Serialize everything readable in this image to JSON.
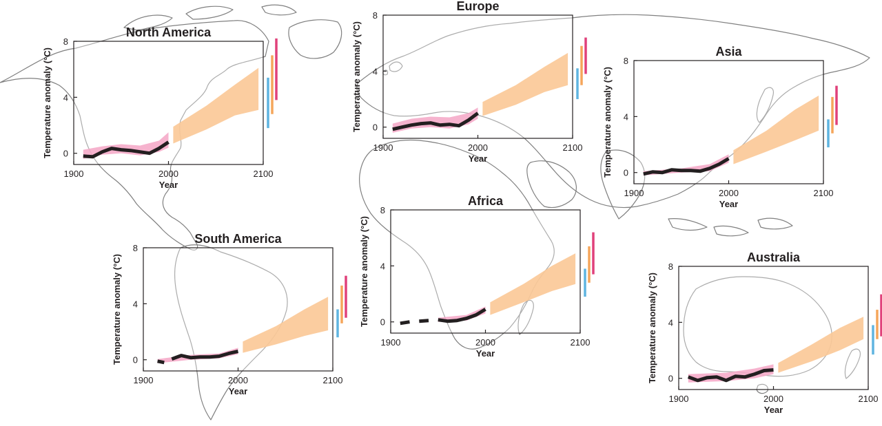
{
  "colors": {
    "observed_line": "#231f20",
    "observed_band": "#f4a6c6",
    "projection_band": "#fbc896",
    "bar_blue": "#5fb4e0",
    "bar_orange": "#f5a65b",
    "bar_pink": "#e0417a",
    "map_line": "#7f7f7f"
  },
  "chart_data": [
    {
      "type": "line",
      "title": "North America",
      "xlabel": "Year",
      "ylabel": "Temperature anomaly (°C)",
      "xlim": [
        1900,
        2100
      ],
      "ylim": [
        -0.8,
        8
      ],
      "xticks": [
        "1900",
        "2000",
        "2100"
      ],
      "yticks": [
        "0",
        "4",
        "8"
      ],
      "series": [
        {
          "values": [
            [
              1910,
              -0.2
            ],
            [
              1920,
              -0.25
            ],
            [
              1930,
              0.1
            ],
            [
              1940,
              0.35
            ],
            [
              1950,
              0.25
            ],
            [
              1960,
              0.2
            ],
            [
              1970,
              0.1
            ],
            [
              1980,
              0.0
            ],
            [
              1990,
              0.35
            ],
            [
              2000,
              0.8
            ]
          ]
        }
      ],
      "observed_band": {
        "x": [
          1910,
          1930,
          1950,
          1970,
          1990,
          2000
        ],
        "low": [
          -0.4,
          -0.1,
          0.0,
          -0.15,
          0.1,
          0.4
        ],
        "high": [
          0.25,
          0.5,
          0.65,
          0.55,
          0.9,
          1.5
        ]
      },
      "projection_band": {
        "x": [
          2005,
          2040,
          2070,
          2095
        ],
        "low": [
          0.7,
          1.7,
          2.7,
          3.1
        ],
        "high": [
          1.9,
          3.4,
          4.9,
          6.1
        ]
      },
      "side_bars": [
        [
          1.8,
          5.4
        ],
        [
          2.8,
          7.0
        ],
        [
          3.8,
          8.2
        ]
      ]
    },
    {
      "type": "line",
      "title": "Europe",
      "xlabel": "Year",
      "ylabel": "Temperature anomaly (°C)",
      "xlim": [
        1900,
        2100
      ],
      "ylim": [
        -0.8,
        8
      ],
      "xticks": [
        "1900",
        "2000",
        "2100"
      ],
      "yticks": [
        "0",
        "4",
        "8"
      ],
      "series": [
        {
          "values": [
            [
              1910,
              -0.15
            ],
            [
              1920,
              0.0
            ],
            [
              1930,
              0.15
            ],
            [
              1940,
              0.25
            ],
            [
              1950,
              0.3
            ],
            [
              1960,
              0.15
            ],
            [
              1970,
              0.2
            ],
            [
              1980,
              0.1
            ],
            [
              1990,
              0.5
            ],
            [
              2000,
              1.0
            ]
          ]
        }
      ],
      "observed_band": {
        "x": [
          1910,
          1930,
          1950,
          1970,
          1990,
          2000
        ],
        "low": [
          -0.4,
          -0.1,
          0.0,
          -0.1,
          0.2,
          0.6
        ],
        "high": [
          0.25,
          0.6,
          0.75,
          0.7,
          1.0,
          1.4
        ]
      },
      "projection_band": {
        "x": [
          2005,
          2040,
          2070,
          2095
        ],
        "low": [
          0.8,
          1.6,
          2.5,
          3.0
        ],
        "high": [
          1.8,
          3.0,
          4.3,
          5.3
        ]
      },
      "side_bars": [
        [
          2.0,
          4.2
        ],
        [
          3.0,
          5.8
        ],
        [
          3.8,
          6.4
        ]
      ]
    },
    {
      "type": "line",
      "title": "Asia",
      "xlabel": "Year",
      "ylabel": "Temperature anomaly (°C)",
      "xlim": [
        1900,
        2100
      ],
      "ylim": [
        -0.8,
        8
      ],
      "xticks": [
        "1900",
        "2000",
        "2100"
      ],
      "yticks": [
        "0",
        "4",
        "8"
      ],
      "series": [
        {
          "values": [
            [
              1910,
              -0.1
            ],
            [
              1920,
              0.05
            ],
            [
              1930,
              0.0
            ],
            [
              1940,
              0.2
            ],
            [
              1950,
              0.15
            ],
            [
              1960,
              0.15
            ],
            [
              1970,
              0.1
            ],
            [
              1980,
              0.3
            ],
            [
              1990,
              0.6
            ],
            [
              2000,
              1.0
            ]
          ]
        }
      ],
      "observed_band": {
        "x": [
          1910,
          1950,
          1980,
          2000
        ],
        "low": [
          -0.2,
          0.0,
          0.1,
          0.7
        ],
        "high": [
          0.1,
          0.3,
          0.6,
          1.3
        ]
      },
      "projection_band": {
        "x": [
          2005,
          2040,
          2070,
          2095
        ],
        "low": [
          0.6,
          1.5,
          2.3,
          3.0
        ],
        "high": [
          1.6,
          3.0,
          4.5,
          5.5
        ]
      },
      "side_bars": [
        [
          1.8,
          3.8
        ],
        [
          2.8,
          5.4
        ],
        [
          3.4,
          6.2
        ]
      ]
    },
    {
      "type": "line",
      "title": "South America",
      "xlabel": "Year",
      "ylabel": "Temperature anomaly (°C)",
      "xlim": [
        1900,
        2100
      ],
      "ylim": [
        -0.8,
        8
      ],
      "xticks": [
        "1900",
        "2000",
        "2100"
      ],
      "yticks": [
        "0",
        "4",
        "8"
      ],
      "series": [
        {
          "values": [
            [
              1915,
              -0.1
            ],
            [
              1922,
              -0.2
            ]
          ]
        },
        {
          "values": [
            [
              1930,
              0.05
            ],
            [
              1940,
              0.3
            ],
            [
              1950,
              0.15
            ],
            [
              1960,
              0.2
            ],
            [
              1970,
              0.2
            ],
            [
              1980,
              0.25
            ],
            [
              1990,
              0.45
            ],
            [
              2000,
              0.6
            ]
          ]
        }
      ],
      "observed_band": {
        "x": [
          1915,
          1950,
          1980,
          2000
        ],
        "low": [
          -0.25,
          0.0,
          0.1,
          0.4
        ],
        "high": [
          0.05,
          0.35,
          0.45,
          0.85
        ]
      },
      "projection_band": {
        "x": [
          2005,
          2040,
          2070,
          2095
        ],
        "low": [
          0.5,
          1.1,
          1.7,
          2.1
        ],
        "high": [
          1.3,
          2.4,
          3.6,
          4.5
        ]
      },
      "side_bars": [
        [
          1.6,
          3.6
        ],
        [
          2.6,
          5.3
        ],
        [
          3.0,
          6.0
        ]
      ]
    },
    {
      "type": "line",
      "title": "Africa",
      "xlabel": "Year",
      "ylabel": "Temperature anomaly (°C)",
      "xlim": [
        1900,
        2100
      ],
      "ylim": [
        -0.8,
        8
      ],
      "xticks": [
        "1900",
        "2000",
        "2100"
      ],
      "yticks": [
        "0",
        "4",
        "8"
      ],
      "series": [
        {
          "values": [
            [
              1910,
              -0.1
            ],
            [
              1920,
              0.0
            ]
          ]
        },
        {
          "values": [
            [
              1930,
              0.05
            ],
            [
              1940,
              0.1
            ]
          ]
        },
        {
          "values": [
            [
              1950,
              0.15
            ],
            [
              1960,
              0.05
            ],
            [
              1970,
              0.1
            ],
            [
              1980,
              0.25
            ],
            [
              1990,
              0.5
            ],
            [
              2000,
              0.9
            ]
          ]
        }
      ],
      "observed_band": {
        "x": [
          1950,
          1980,
          2000
        ],
        "low": [
          0.0,
          0.1,
          0.6
        ],
        "high": [
          0.3,
          0.5,
          1.1
        ]
      },
      "projection_band": {
        "x": [
          2005,
          2040,
          2070,
          2095
        ],
        "low": [
          0.5,
          1.4,
          2.2,
          2.7
        ],
        "high": [
          1.4,
          2.7,
          4.0,
          4.9
        ]
      },
      "side_bars": [
        [
          1.8,
          3.8
        ],
        [
          2.8,
          5.4
        ],
        [
          3.4,
          6.4
        ]
      ]
    },
    {
      "type": "line",
      "title": "Australia",
      "xlabel": "Year",
      "ylabel": "Temperature anomaly (°C)",
      "xlim": [
        1900,
        2100
      ],
      "ylim": [
        -0.8,
        8
      ],
      "xticks": [
        "1900",
        "2000",
        "2100"
      ],
      "yticks": [
        "0",
        "4",
        "8"
      ],
      "series": [
        {
          "values": [
            [
              1910,
              0.1
            ],
            [
              1920,
              -0.15
            ],
            [
              1930,
              0.05
            ],
            [
              1940,
              0.1
            ],
            [
              1950,
              -0.15
            ],
            [
              1960,
              0.15
            ],
            [
              1970,
              0.1
            ],
            [
              1980,
              0.3
            ],
            [
              1990,
              0.55
            ],
            [
              2000,
              0.6
            ]
          ]
        }
      ],
      "observed_band": {
        "x": [
          1910,
          1950,
          1980,
          2000
        ],
        "low": [
          -0.3,
          -0.2,
          0.0,
          0.3
        ],
        "high": [
          0.3,
          0.4,
          0.7,
          1.0
        ]
      },
      "projection_band": {
        "x": [
          2005,
          2040,
          2070,
          2095
        ],
        "low": [
          0.4,
          1.2,
          2.0,
          2.8
        ],
        "high": [
          1.1,
          2.4,
          3.6,
          4.4
        ]
      },
      "side_bars": [
        [
          1.7,
          3.8
        ],
        [
          2.8,
          4.9
        ],
        [
          3.0,
          6.0
        ]
      ]
    }
  ]
}
